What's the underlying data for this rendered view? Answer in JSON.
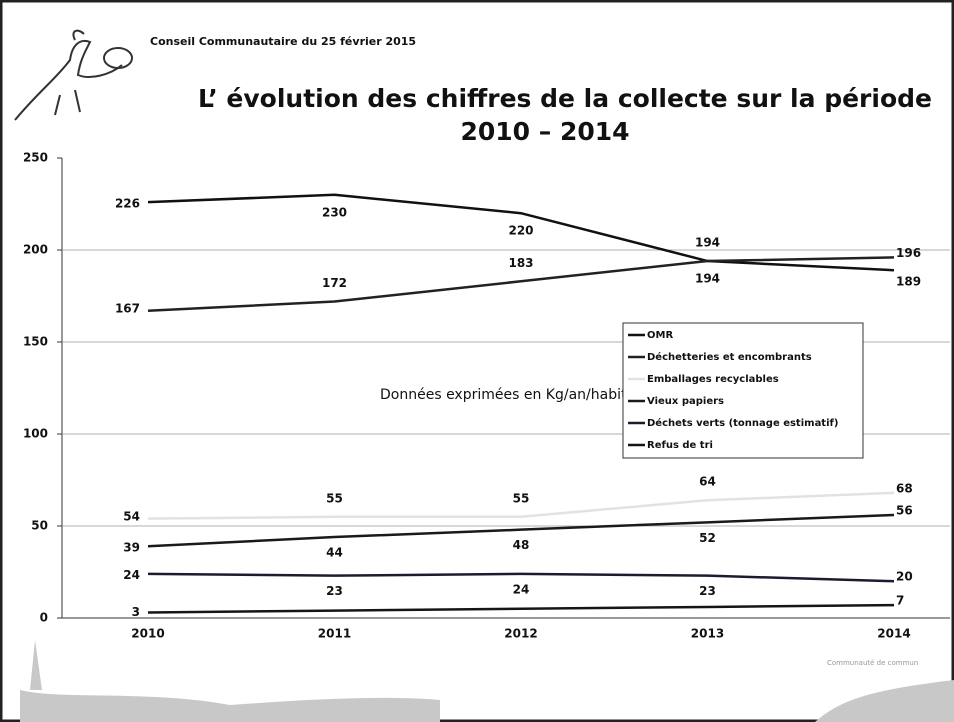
{
  "chart_data": {
    "type": "line",
    "subtitle": "Conseil Communautaire du 25 février 2015",
    "title": [
      "L’ évolution des chiffres de la collecte  sur la période",
      "2010 – 2014"
    ],
    "annotation": "Données exprimées en Kg/an/habitant",
    "footer": "Communauté de commun",
    "categories": [
      "2010",
      "2011",
      "2012",
      "2013",
      "2014"
    ],
    "ylim": [
      0,
      250
    ],
    "yticks": [
      0,
      50,
      100,
      150,
      200,
      250
    ],
    "grid": true,
    "series": [
      {
        "name": "OMR",
        "color": "#111111",
        "values": [
          226,
          230,
          220,
          194,
          189
        ]
      },
      {
        "name": "Déchetteries et encombrants",
        "color": "#222222",
        "values": [
          167,
          172,
          183,
          194,
          196
        ]
      },
      {
        "name": "Emballages recyclables",
        "color": "#e2e2e2",
        "values": [
          54,
          55,
          55,
          64,
          68
        ]
      },
      {
        "name": "Vieux papiers",
        "color": "#1a1a1a",
        "values": [
          39,
          44,
          48,
          52,
          56
        ]
      },
      {
        "name": "Déchets verts (tonnage estimatif)",
        "color": "#1c1c30",
        "values": [
          24,
          23,
          24,
          23,
          20
        ]
      },
      {
        "name": "Refus de tri",
        "color": "#151515",
        "values": [
          3,
          4,
          5,
          6,
          7
        ],
        "value_labels": [
          "3",
          null,
          null,
          null,
          "7"
        ]
      }
    ]
  }
}
